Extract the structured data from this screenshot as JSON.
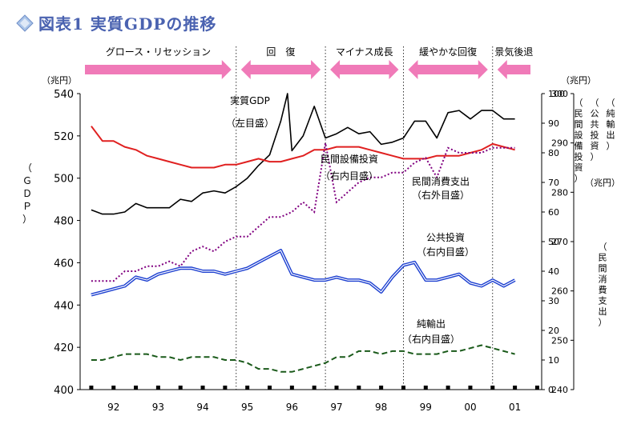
{
  "title": "図表1 実質GDPの推移",
  "chart_data": {
    "type": "line",
    "title": "図表1 実質GDPの推移",
    "x_ticks": [
      "92",
      "93",
      "94",
      "95",
      "96",
      "97",
      "98",
      "99",
      "00",
      "01"
    ],
    "phases": [
      {
        "label": "グロース・リセッション",
        "arrow": "right"
      },
      {
        "label": "回　復",
        "arrow": "both"
      },
      {
        "label": "マイナス成長",
        "arrow": "both"
      },
      {
        "label": "緩やかな回復",
        "arrow": "both"
      },
      {
        "label": "景気後退",
        "arrow": "left"
      }
    ],
    "axes": {
      "left": {
        "unit": "（兆円）",
        "label": "（ＧＤＰ）",
        "ylim": [
          400,
          540
        ],
        "ticks": [
          400,
          420,
          440,
          460,
          480,
          500,
          520,
          540
        ]
      },
      "right_inner": {
        "unit": "（兆円）",
        "ylim": [
          0,
          100
        ],
        "ticks": [
          0,
          10,
          20,
          30,
          40,
          50,
          60,
          70,
          80,
          90,
          100
        ]
      },
      "right_upper_labels": [
        "（民間設備投資）",
        "（公共投資）",
        "（純輸出）"
      ],
      "right_outer": {
        "unit": "（兆円）",
        "label": "（民間消費支出）",
        "ylim": [
          240,
          300
        ],
        "ticks": [
          240,
          250,
          260,
          270,
          280,
          290,
          300
        ]
      }
    },
    "series": [
      {
        "name": "実質GDP",
        "note": "（左目盛）",
        "axis": "left",
        "color": "#000000",
        "style": "solid",
        "x": [
          1991.5,
          1991.75,
          1992.0,
          1992.25,
          1992.5,
          1992.75,
          1993.0,
          1993.25,
          1993.5,
          1993.75,
          1994.0,
          1994.25,
          1994.5,
          1994.75,
          1995.0,
          1995.25,
          1995.5,
          1995.75,
          1995.9,
          1996.0,
          1996.25,
          1996.5,
          1996.75,
          1997.0,
          1997.25,
          1997.5,
          1997.75,
          1998.0,
          1998.25,
          1998.5,
          1998.75,
          1999.0,
          1999.25,
          1999.5,
          1999.75,
          2000.0,
          2000.25,
          2000.5,
          2000.75,
          2001.0
        ],
        "values": [
          485,
          483,
          483,
          484,
          488,
          486,
          486,
          486,
          490,
          489,
          493,
          494,
          493,
          496,
          500,
          506,
          511,
          527,
          540,
          513,
          520,
          534,
          519,
          521,
          524,
          521,
          522,
          516,
          517,
          519,
          527,
          527,
          519,
          531,
          532,
          528,
          532,
          532,
          528,
          528
        ]
      },
      {
        "name": "民間設備投資",
        "note": "（右内目盛）",
        "axis": "right_inner",
        "color": "#e02020",
        "style": "solid",
        "x": [
          1991.5,
          1991.75,
          1992.0,
          1992.25,
          1992.5,
          1992.75,
          1993.0,
          1993.25,
          1993.5,
          1993.75,
          1994.0,
          1994.25,
          1994.5,
          1994.75,
          1995.0,
          1995.25,
          1995.5,
          1995.75,
          1996.0,
          1996.25,
          1996.5,
          1996.75,
          1997.0,
          1997.25,
          1997.5,
          1997.75,
          1998.0,
          1998.25,
          1998.5,
          1998.75,
          1999.0,
          1999.25,
          1999.5,
          1999.75,
          2000.0,
          2000.25,
          2000.5,
          2000.75,
          2001.0
        ],
        "values": [
          89,
          84,
          84,
          82,
          81,
          79,
          78,
          77,
          76,
          75,
          75,
          75,
          76,
          76,
          77,
          78,
          77,
          77,
          78,
          79,
          81,
          81,
          82,
          82,
          82,
          81,
          80,
          79,
          78,
          78,
          78,
          79,
          79,
          79,
          80,
          81,
          83,
          82,
          81
        ]
      },
      {
        "name": "民間消費支出",
        "note": "（右外目盛）",
        "axis": "right_outer",
        "color": "#800080",
        "style": "dotted",
        "x": [
          1991.5,
          1991.75,
          1992.0,
          1992.25,
          1992.5,
          1992.75,
          1993.0,
          1993.25,
          1993.5,
          1993.75,
          1994.0,
          1994.25,
          1994.5,
          1994.75,
          1995.0,
          1995.25,
          1995.5,
          1995.75,
          1996.0,
          1996.25,
          1996.5,
          1996.75,
          1997.0,
          1997.25,
          1997.5,
          1997.75,
          1998.0,
          1998.25,
          1998.5,
          1998.75,
          1999.0,
          1999.25,
          1999.5,
          1999.75,
          2000.0,
          2000.25,
          2000.5,
          2000.75,
          2001.0
        ],
        "values": [
          262,
          262,
          262,
          264,
          264,
          265,
          265,
          266,
          265,
          268,
          269,
          268,
          270,
          271,
          271,
          273,
          275,
          275,
          276,
          278,
          276,
          290,
          278,
          280,
          282,
          283,
          283,
          284,
          284,
          286,
          287,
          283,
          289,
          288,
          288,
          288,
          289,
          289,
          289
        ]
      },
      {
        "name": "公共投資",
        "note": "（右内目盛）",
        "axis": "right_inner",
        "color": "#1c3fd0",
        "style": "double",
        "x": [
          1991.5,
          1991.75,
          1992.0,
          1992.25,
          1992.5,
          1992.75,
          1993.0,
          1993.25,
          1993.5,
          1993.75,
          1994.0,
          1994.25,
          1994.5,
          1994.75,
          1995.0,
          1995.25,
          1995.5,
          1995.75,
          1996.0,
          1996.25,
          1996.5,
          1996.75,
          1997.0,
          1997.25,
          1997.5,
          1997.75,
          1998.0,
          1998.25,
          1998.5,
          1998.75,
          1999.0,
          1999.25,
          1999.5,
          1999.75,
          2000.0,
          2000.25,
          2000.5,
          2000.75,
          2001.0
        ],
        "values": [
          32,
          33,
          34,
          35,
          38,
          37,
          39,
          40,
          41,
          41,
          40,
          40,
          39,
          40,
          41,
          43,
          45,
          47,
          39,
          38,
          37,
          37,
          38,
          37,
          37,
          36,
          33,
          38,
          42,
          43,
          37,
          37,
          38,
          39,
          36,
          35,
          37,
          35,
          37
        ]
      },
      {
        "name": "純輸出",
        "note": "（右内目盛）",
        "axis": "right_inner",
        "color": "#1a5a1a",
        "style": "dashed",
        "x": [
          1991.5,
          1991.75,
          1992.0,
          1992.25,
          1992.5,
          1992.75,
          1993.0,
          1993.25,
          1993.5,
          1993.75,
          1994.0,
          1994.25,
          1994.5,
          1994.75,
          1995.0,
          1995.25,
          1995.5,
          1995.75,
          1996.0,
          1996.25,
          1996.5,
          1996.75,
          1997.0,
          1997.25,
          1997.5,
          1997.75,
          1998.0,
          1998.25,
          1998.5,
          1998.75,
          1999.0,
          1999.25,
          1999.5,
          1999.75,
          2000.0,
          2000.25,
          2000.5,
          2000.75,
          2001.0
        ],
        "values": [
          10,
          10,
          11,
          12,
          12,
          12,
          11,
          11,
          10,
          11,
          11,
          11,
          10,
          10,
          9,
          7,
          7,
          6,
          6,
          7,
          8,
          9,
          11,
          11,
          13,
          13,
          12,
          13,
          13,
          12,
          12,
          12,
          13,
          13,
          14,
          15,
          14,
          13,
          12
        ]
      }
    ],
    "x_range": [
      1991.25,
      2001.6
    ],
    "colors": {
      "arrow": "#f07ab8",
      "title": "#4a62b0"
    }
  }
}
